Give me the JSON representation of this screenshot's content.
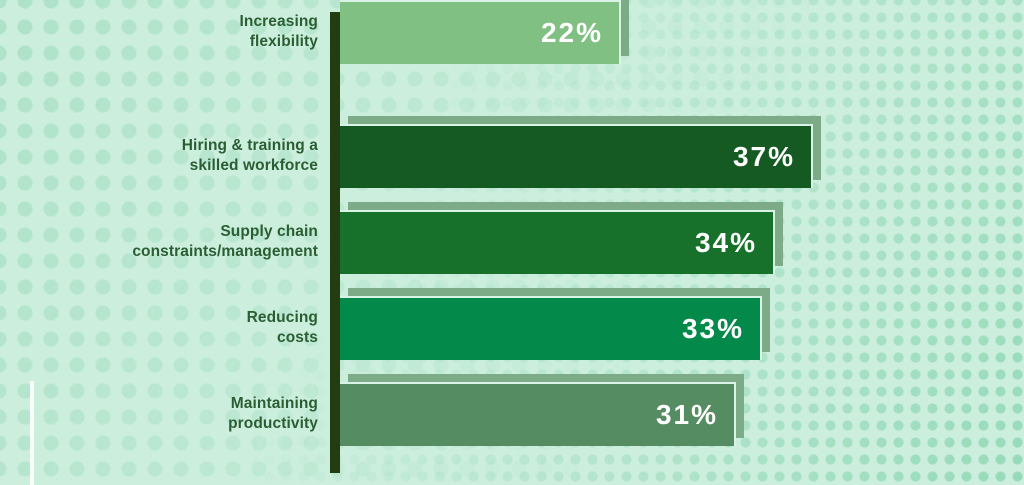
{
  "chart_data": {
    "type": "bar",
    "orientation": "horizontal",
    "title": "",
    "xlabel": "",
    "ylabel": "",
    "xlim": [
      0,
      40
    ],
    "grid": false,
    "legend": false,
    "categories": [
      "Hiring & training a skilled workforce",
      "Supply chain constraints/management",
      "Reducing costs",
      "Maintaining productivity",
      "Increasing flexibility"
    ],
    "values": [
      37,
      34,
      33,
      31,
      22
    ],
    "value_labels": [
      "37%",
      "34%",
      "33%",
      "31%",
      "22%"
    ],
    "colors": {
      "bars": [
        "#155a22",
        "#17712a",
        "#038949",
        "#558c61",
        "#81c083"
      ],
      "shadow": "#7dab88",
      "axis": "#223d12",
      "background": "#cbeedd",
      "category_text": "#2b5e33",
      "value_text": "#ffffff"
    }
  },
  "rows": [
    {
      "label_line1": "Hiring & training a",
      "label_line2": "skilled workforce",
      "value": "37%"
    },
    {
      "label_line1": "Supply chain",
      "label_line2": "constraints/management",
      "value": "34%"
    },
    {
      "label_line1": "Reducing",
      "label_line2": "costs",
      "value": "33%"
    },
    {
      "label_line1": "Maintaining",
      "label_line2": "productivity",
      "value": "31%"
    },
    {
      "label_line1": "Increasing",
      "label_line2": "flexibility",
      "value": "22%"
    }
  ]
}
